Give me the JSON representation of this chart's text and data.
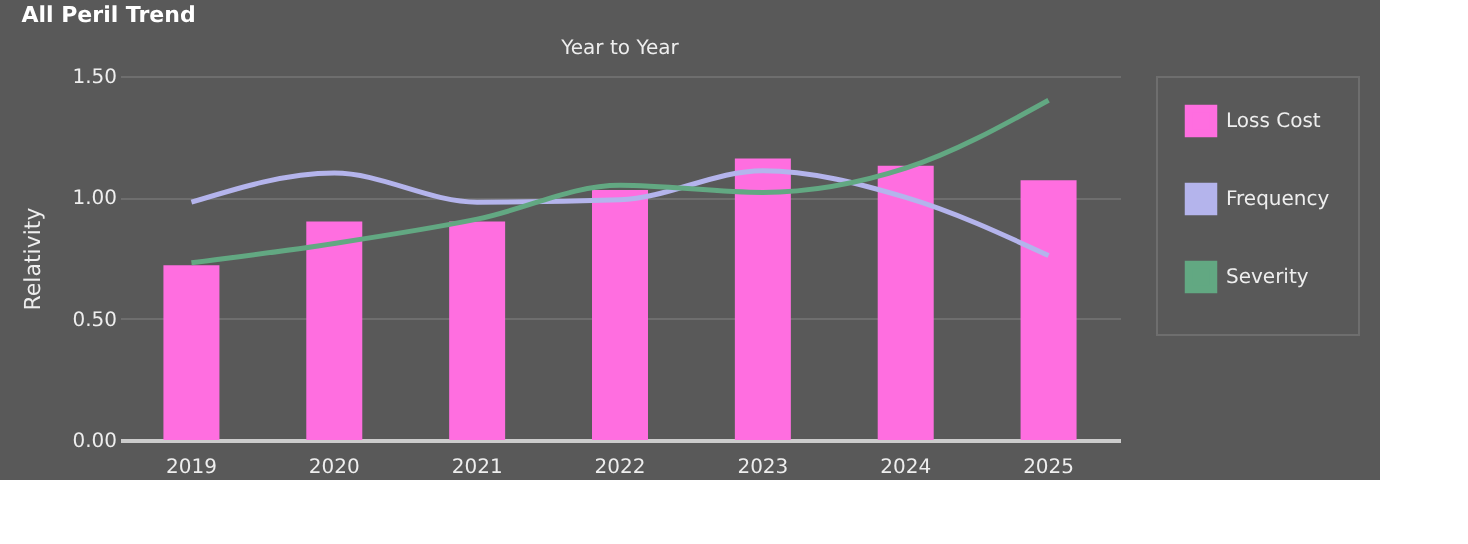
{
  "chart_data": {
    "type": "bar",
    "title": "All Peril Trend",
    "subtitle": "Year to Year",
    "ylabel": "Relativity",
    "categories": [
      "2019",
      "2020",
      "2021",
      "2022",
      "2023",
      "2024",
      "2025"
    ],
    "series": [
      {
        "name": "Loss Cost",
        "color": "#ff6ee0",
        "values": [
          0.72,
          0.9,
          0.9,
          1.03,
          1.16,
          1.13,
          1.07
        ]
      },
      {
        "name": "Frequency",
        "type": "line",
        "color": "#b4b4ec",
        "values": [
          0.98,
          1.1,
          0.98,
          0.99,
          1.11,
          1.0,
          0.76
        ]
      },
      {
        "name": "Severity",
        "type": "line",
        "color": "#62a882",
        "values": [
          0.73,
          0.81,
          0.91,
          1.05,
          1.02,
          1.12,
          1.4
        ]
      }
    ],
    "ylim": [
      0,
      1.5
    ],
    "yticks": [
      {
        "value": 0,
        "label": "0.00"
      },
      {
        "value": 0.5,
        "label": "0.50"
      },
      {
        "value": 1,
        "label": "1.00"
      },
      {
        "value": 1.5,
        "label": "1.50"
      }
    ],
    "grid": "y",
    "legend": "right",
    "line_style": "solid",
    "marker": "none"
  }
}
